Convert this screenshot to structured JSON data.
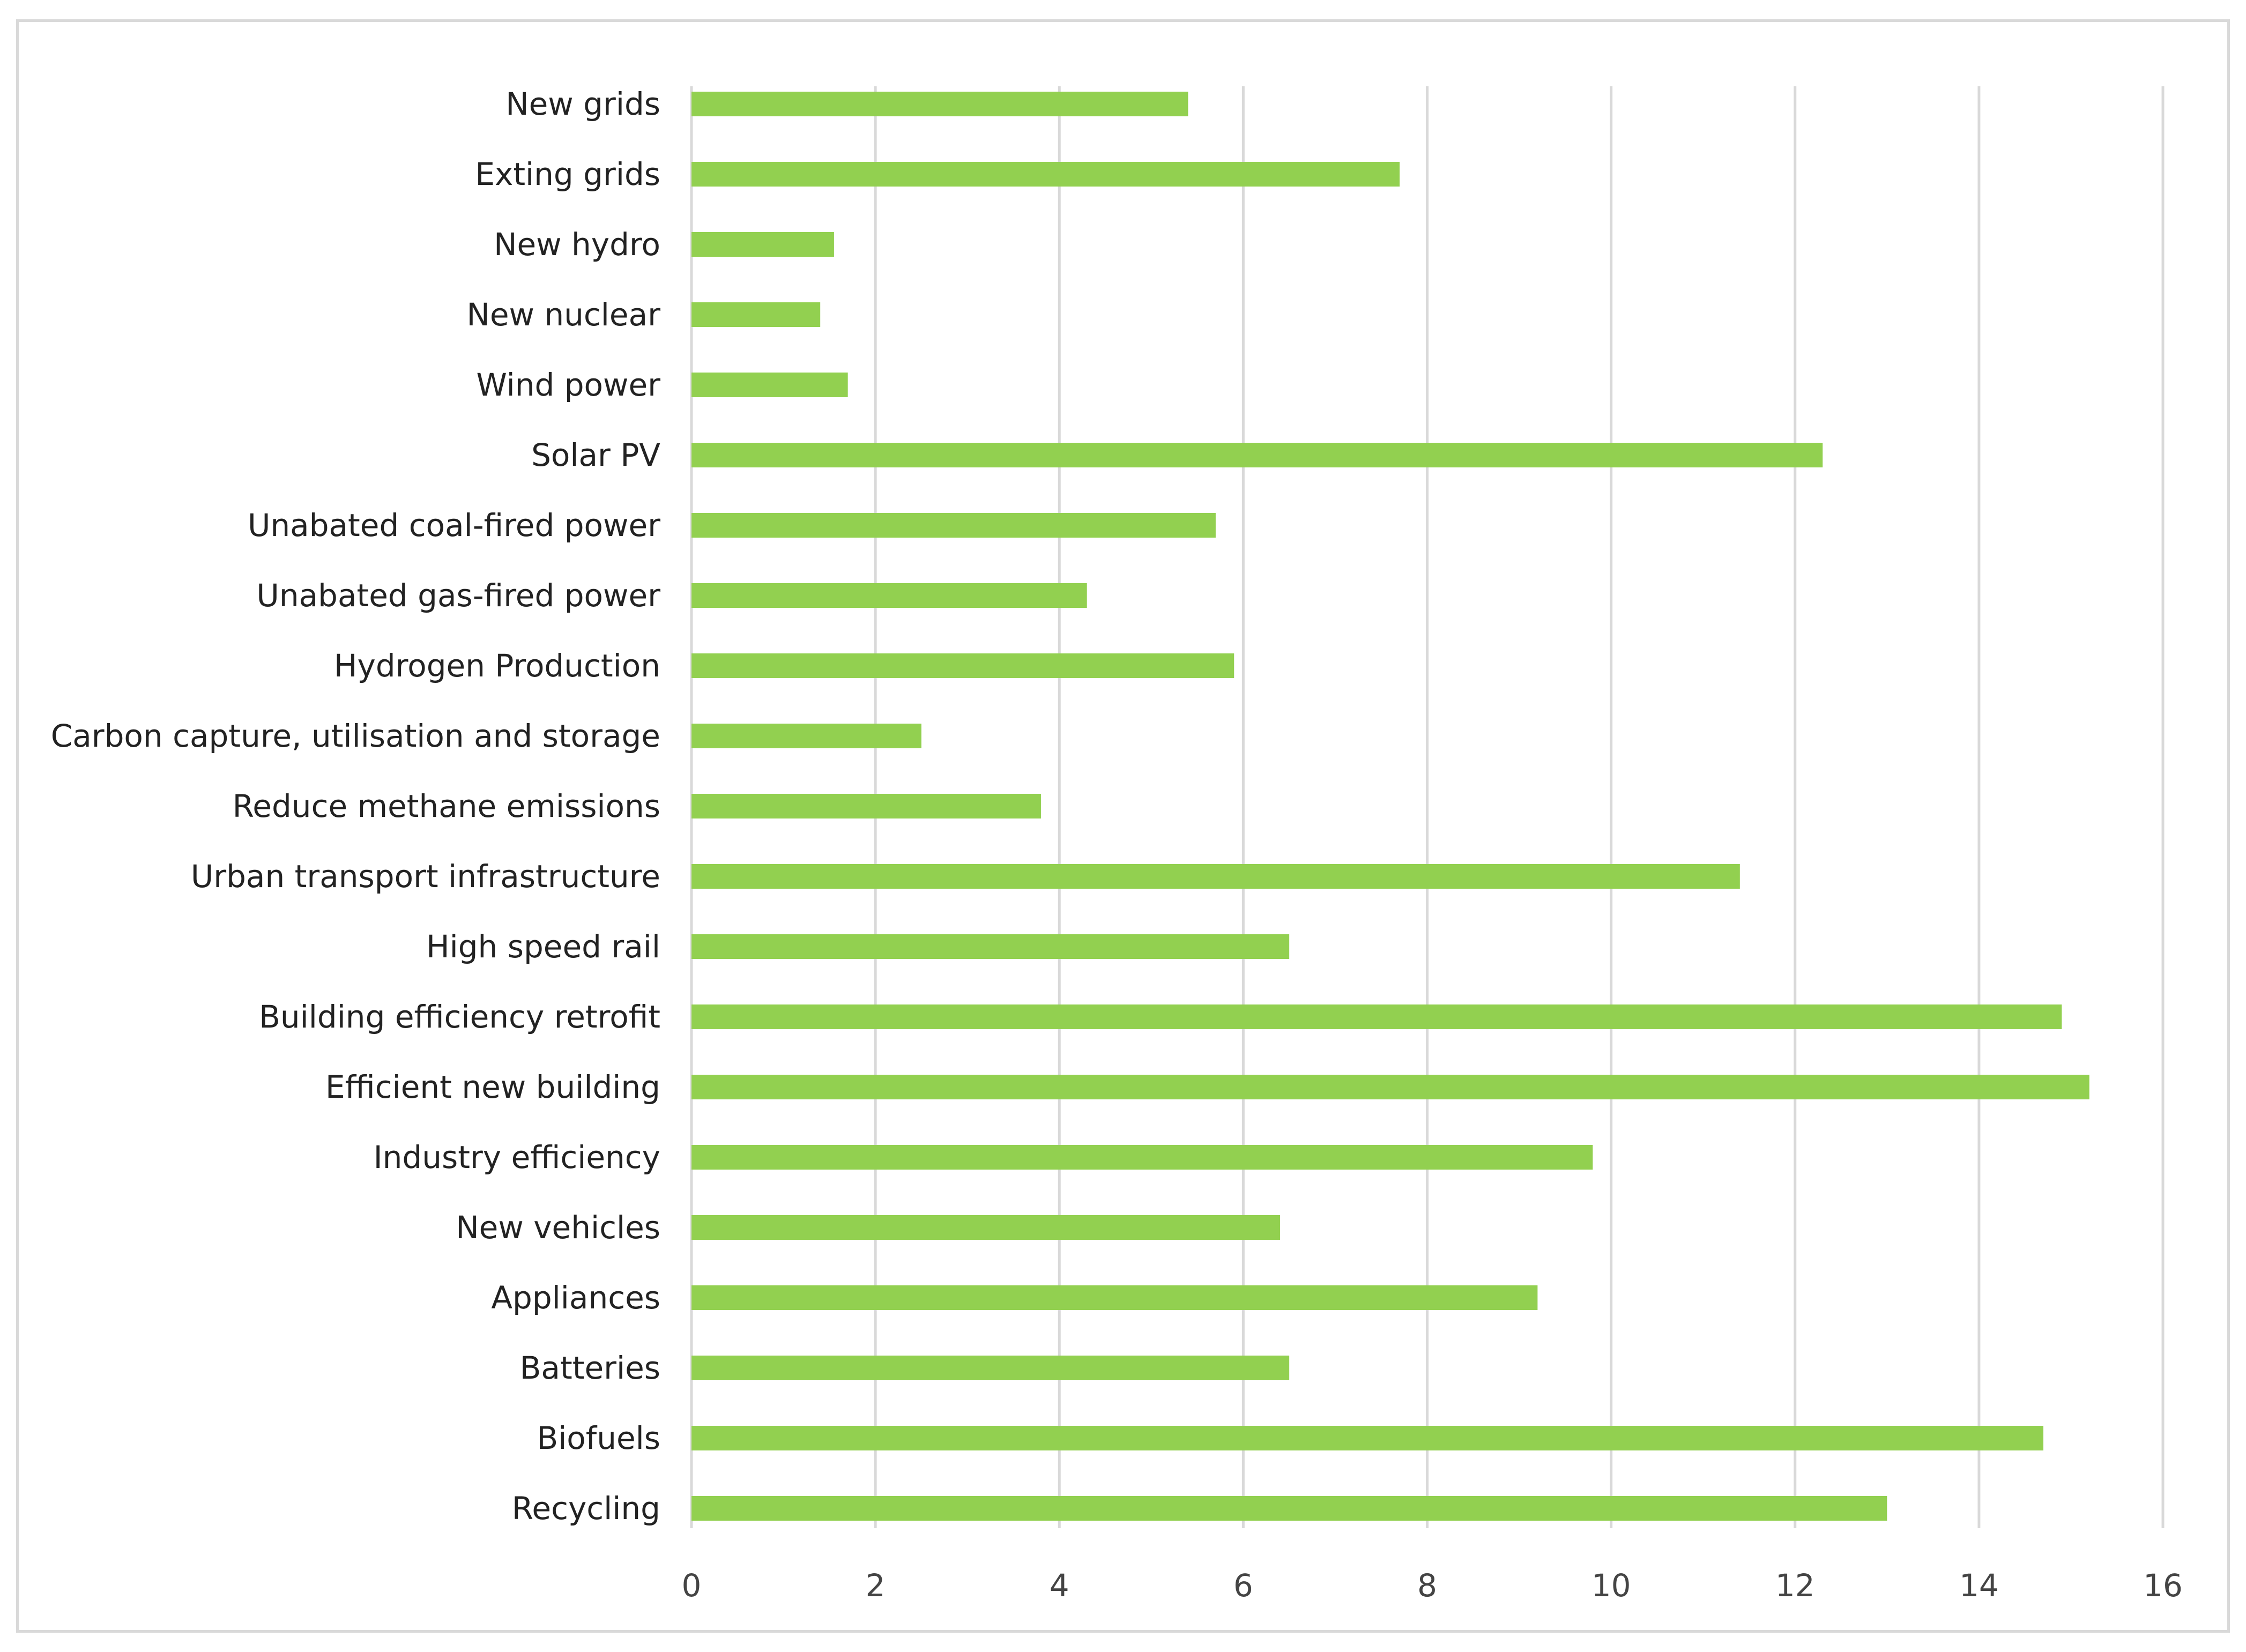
{
  "chart_data": {
    "type": "bar",
    "orientation": "horizontal",
    "title": "",
    "xlabel": "",
    "ylabel": "",
    "xlim": [
      0,
      16
    ],
    "xticks": [
      0,
      2,
      4,
      6,
      8,
      10,
      12,
      14,
      16
    ],
    "grid": "vertical",
    "bar_color": "#92d050",
    "categories": [
      "New grids",
      "Exting grids",
      "New hydro",
      "New nuclear",
      "Wind power",
      "Solar PV",
      "Unabated coal-fired power",
      "Unabated gas-fired power",
      "Hydrogen Production",
      "Carbon capture, utilisation and storage",
      "Reduce methane emissions",
      "Urban transport infrastructure",
      "High speed rail",
      "Building efficiency retrofit",
      "Efficient new building",
      "Industry efficiency",
      "New vehicles",
      "Appliances",
      "Batteries",
      "Biofuels",
      "Recycling"
    ],
    "values": [
      5.4,
      7.7,
      1.55,
      1.4,
      1.7,
      12.3,
      5.7,
      4.3,
      5.9,
      2.5,
      3.8,
      11.4,
      6.5,
      14.9,
      15.2,
      9.8,
      6.4,
      9.2,
      6.5,
      14.7,
      13.0
    ]
  }
}
